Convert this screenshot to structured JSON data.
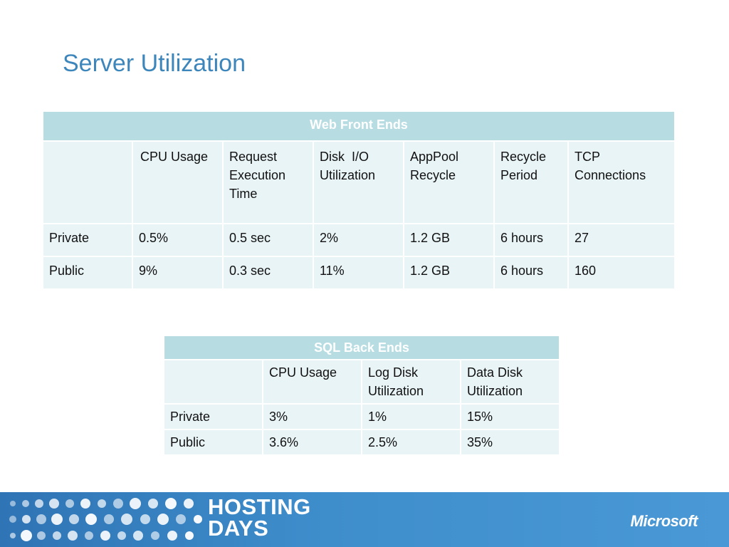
{
  "slide": {
    "title": "Server Utilization"
  },
  "web_front_ends": {
    "caption": "Web Front Ends",
    "headers": [
      "",
      "CPU Usage",
      "Request Execution Time",
      "Disk  I/O Utilization",
      "AppPool Recycle",
      "Recycle Period",
      "TCP Connections"
    ],
    "rows": [
      [
        "Private",
        "0.5%",
        "0.5 sec",
        "2%",
        "1.2 GB",
        "6 hours",
        "27"
      ],
      [
        "Public",
        "9%",
        "0.3 sec",
        "11%",
        "1.2 GB",
        "6 hours",
        "160"
      ]
    ]
  },
  "sql_back_ends": {
    "caption": "SQL Back Ends",
    "headers": [
      "",
      "CPU Usage",
      "Log Disk Utilization",
      "Data Disk Utilization"
    ],
    "rows": [
      [
        "Private",
        "3%",
        "1%",
        "15%"
      ],
      [
        "Public",
        "3.6%",
        "2.5%",
        "35%"
      ]
    ]
  },
  "footer": {
    "brand_line1": "HOSTING",
    "brand_line2": "DAYS",
    "vendor_logo": "Microsoft",
    "colors": {
      "band": "#3f8ecc",
      "accent": "#b7dde3",
      "title": "#3d86bb"
    }
  }
}
